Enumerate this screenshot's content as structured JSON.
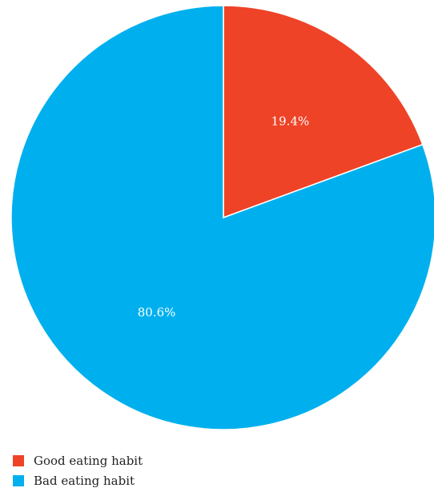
{
  "chart_data": {
    "type": "pie",
    "title": "",
    "categories": [
      "Good eating habit",
      "Bad eating habit"
    ],
    "values": [
      19.4,
      80.6
    ],
    "data_labels": [
      "19.4%",
      "80.6%"
    ],
    "colors": [
      "#ee4327",
      "#00b0ee"
    ],
    "start_angle": "12 o'clock",
    "direction": "clockwise",
    "legend_position": "bottom-left"
  }
}
